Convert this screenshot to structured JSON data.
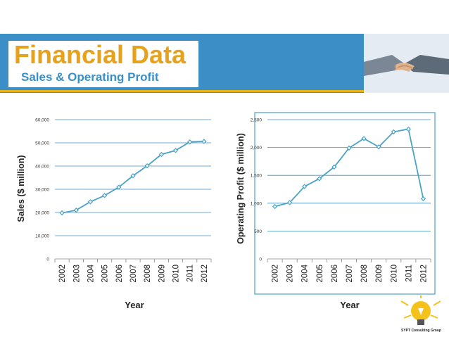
{
  "header": {
    "title": "Financial Data",
    "subtitle": "Sales & Operating Profit"
  },
  "footer": {
    "logo_text": "SYPT Consulting Group"
  },
  "colors": {
    "banner": "#3c8fc6",
    "accent": "#e6a21c",
    "series": "#4aa3c4"
  },
  "chart_data": [
    {
      "type": "line",
      "xlabel": "Year",
      "ylabel": "Sales ($ million)",
      "x": [
        "2002",
        "2003",
        "2004",
        "2005",
        "2006",
        "2007",
        "2008",
        "2009",
        "2010",
        "2011",
        "2012"
      ],
      "y_ticks": [
        "0",
        "10,000",
        "20,000",
        "30,000",
        "40,000",
        "50,000",
        "60,000"
      ],
      "ylim": [
        0,
        60000
      ],
      "grid": true,
      "series": [
        {
          "values": [
            19800,
            21000,
            24600,
            27300,
            30900,
            35800,
            40100,
            45000,
            46700,
            50400,
            50600
          ]
        }
      ]
    },
    {
      "type": "line",
      "xlabel": "Year",
      "ylabel": "Operating Profit ($ million)",
      "x": [
        "2002",
        "2003",
        "2004",
        "2005",
        "2006",
        "2007",
        "2008",
        "2009",
        "2010",
        "2011",
        "2012"
      ],
      "y_ticks": [
        "0",
        "500",
        "1,000",
        "1,500",
        "2,000",
        "2,500"
      ],
      "ylim": [
        0,
        2500
      ],
      "grid": true,
      "series": [
        {
          "values": [
            940,
            1010,
            1300,
            1440,
            1650,
            1990,
            2160,
            2010,
            2280,
            2330,
            1080
          ]
        }
      ]
    }
  ]
}
